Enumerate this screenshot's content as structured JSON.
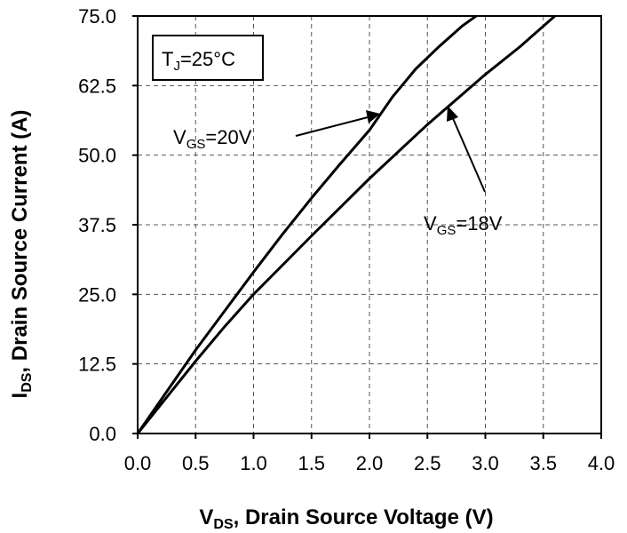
{
  "chart_data": {
    "type": "line",
    "title": "",
    "xlabel": {
      "main": "V",
      "sub": "DS",
      "rest": ", Drain Source Voltage (V)"
    },
    "ylabel": {
      "main": "I",
      "sub": "DS",
      "rest": ", Drain  Source Current (A)"
    },
    "xlim": [
      0,
      4
    ],
    "ylim": [
      0,
      75
    ],
    "x_ticks": [
      0,
      0.5,
      1.0,
      1.5,
      2.0,
      2.5,
      3.0,
      3.5,
      4.0
    ],
    "x_tick_labels": [
      "0.0",
      "0.5",
      "1.0",
      "1.5",
      "2.0",
      "2.5",
      "3.0",
      "3.5",
      "4.0"
    ],
    "y_ticks": [
      0,
      12.5,
      25,
      37.5,
      50,
      62.5,
      75
    ],
    "y_tick_labels": [
      "0.0",
      "12.5",
      "25.0",
      "37.5",
      "50.0",
      "62.5",
      "75.0"
    ],
    "grid": true,
    "series": [
      {
        "name": "VGS=20V",
        "x": [
          0,
          0.25,
          0.5,
          0.75,
          1.0,
          1.25,
          1.5,
          1.75,
          2.0,
          2.2,
          2.4,
          2.6,
          2.8,
          2.92
        ],
        "y": [
          0,
          7.5,
          15,
          22,
          29,
          35.8,
          42.3,
          48.5,
          54.5,
          60.5,
          65.5,
          69.5,
          73.2,
          75
        ]
      },
      {
        "name": "VGS=18V",
        "x": [
          0,
          0.25,
          0.5,
          0.75,
          1.0,
          1.5,
          2.0,
          2.5,
          3.0,
          3.3,
          3.6
        ],
        "y": [
          0,
          6.5,
          13,
          19.2,
          25,
          35.5,
          45.8,
          55.5,
          64.5,
          69.5,
          75
        ]
      }
    ],
    "annotations": [
      {
        "label_main": "V",
        "label_sub": "GS",
        "label_rest": "=20V",
        "series": "VGS=20V"
      },
      {
        "label_main": "V",
        "label_sub": "GS",
        "label_rest": "=18V",
        "series": "VGS=18V"
      }
    ],
    "condition_box": {
      "main": "T",
      "sub": "J",
      "rest": "=25°C"
    }
  }
}
